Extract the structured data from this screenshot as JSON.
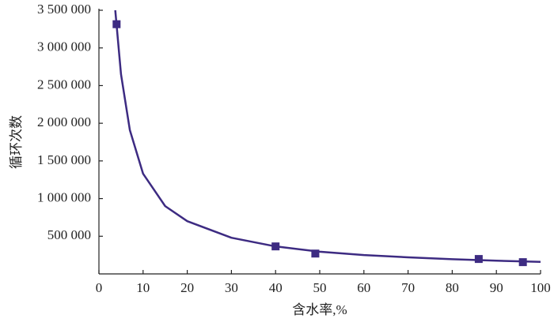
{
  "chart_data": {
    "type": "scatter",
    "x_label": "含水率,%",
    "y_label": "循环次数",
    "xlim": [
      0,
      100
    ],
    "xticks": [
      0,
      10,
      20,
      30,
      40,
      50,
      60,
      70,
      80,
      90,
      100
    ],
    "ylim": [
      0,
      3500000
    ],
    "yticks": [
      {
        "value": 500000,
        "label": "500 000"
      },
      {
        "value": 1000000,
        "label": "1 000 000"
      },
      {
        "value": 1500000,
        "label": "1 500 000"
      },
      {
        "value": 2000000,
        "label": "2 000 000"
      },
      {
        "value": 2500000,
        "label": "2 500 000"
      },
      {
        "value": 3000000,
        "label": "3 000 000"
      },
      {
        "value": 3500000,
        "label": "3 500 000"
      }
    ],
    "color": "#3d2b82",
    "points": {
      "x": [
        4,
        40,
        49,
        86,
        96
      ],
      "values": [
        3315000,
        365000,
        270000,
        198000,
        156000
      ]
    },
    "fit": {
      "x": [
        3.7,
        5,
        7,
        10,
        15,
        20,
        30,
        40,
        50,
        60,
        70,
        80,
        90,
        100
      ],
      "values": [
        3500000,
        2650000,
        1910000,
        1330000,
        900000,
        700000,
        480000,
        365000,
        295000,
        250000,
        220000,
        195000,
        175000,
        160000
      ]
    }
  }
}
